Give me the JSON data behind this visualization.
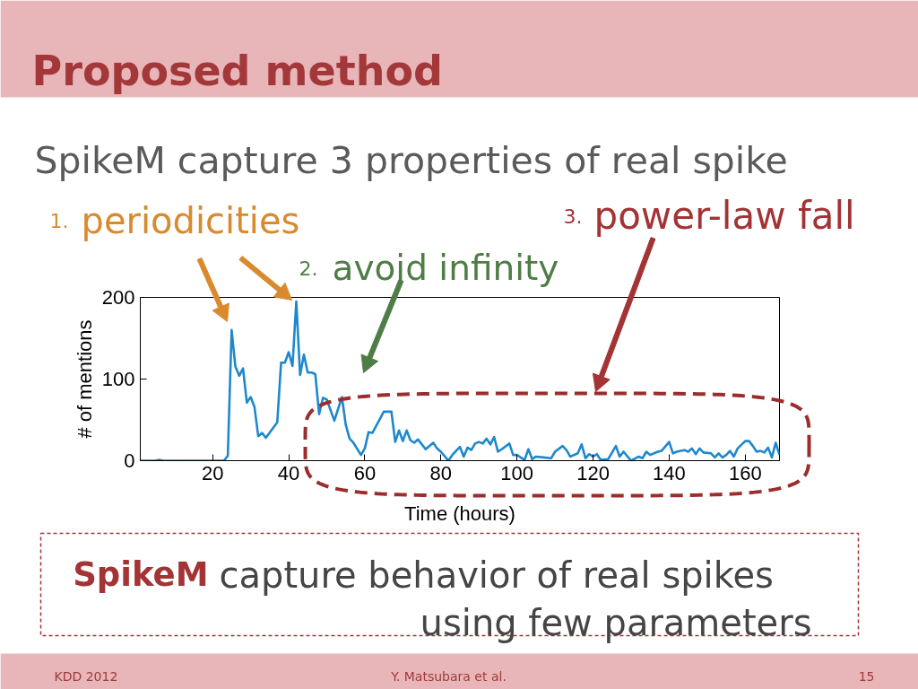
{
  "chart_data": {
    "type": "line",
    "title": "Proposed method",
    "subtitle": "SpikeM capture 3 properties of real spike",
    "xlabel": "Time (hours)",
    "ylabel": "# of mentions",
    "annotations": [
      "1. periodicities",
      "2. avoid infinity",
      "3. power-law fall",
      "SpikeM capture behavior of real spikes",
      "using few parameters",
      "KDD 2012",
      "Y. Matsubara et al.",
      "15"
    ],
    "x": [
      1,
      5,
      6,
      7,
      23,
      24,
      25,
      26,
      27,
      28,
      29,
      30,
      31,
      32,
      33,
      34,
      37,
      38,
      39,
      40,
      41,
      42,
      43,
      44,
      45,
      46,
      47,
      48,
      49,
      50,
      52,
      54,
      55,
      56,
      57,
      59,
      60,
      61,
      62,
      65,
      66,
      67,
      68,
      69,
      70,
      71,
      72,
      73,
      74,
      76,
      78,
      79,
      80,
      82,
      83,
      85,
      86,
      87,
      88,
      89,
      90,
      91,
      92,
      93,
      94,
      95,
      96,
      98,
      99,
      100,
      102,
      103,
      104,
      105,
      107,
      109,
      110,
      112,
      113,
      114,
      116,
      117,
      118,
      119,
      120,
      121,
      122,
      124,
      126,
      127,
      128,
      130,
      132,
      133,
      134,
      135,
      137,
      138,
      140,
      141,
      142,
      144,
      145,
      146,
      147,
      148,
      149,
      151,
      152,
      153,
      154,
      155,
      156,
      157,
      158,
      160,
      161,
      162,
      163,
      164,
      165,
      166,
      167,
      168,
      169
    ],
    "series": [
      {
        "color": "#1e88cc",
        "values": [
          0,
          0,
          1,
          0,
          0,
          6,
          160,
          115,
          104,
          113,
          71,
          78,
          66,
          30,
          34,
          28,
          47,
          120,
          120,
          133,
          116,
          195,
          105,
          130,
          108,
          108,
          106,
          57,
          77,
          75,
          49,
          78,
          44,
          27,
          22,
          7,
          15,
          35,
          34,
          60,
          60,
          60,
          23,
          37,
          24,
          37,
          25,
          22,
          26,
          14,
          22,
          15,
          11,
          0,
          7,
          17,
          5,
          16,
          13,
          21,
          23,
          21,
          27,
          20,
          29,
          11,
          14,
          21,
          7,
          7,
          1,
          14,
          2,
          5,
          4,
          3,
          11,
          18,
          13,
          5,
          9,
          20,
          3,
          8,
          5,
          8,
          1,
          2,
          18,
          5,
          11,
          0,
          5,
          3,
          11,
          7,
          11,
          12,
          23,
          9,
          11,
          13,
          11,
          15,
          8,
          15,
          10,
          9,
          4,
          9,
          4,
          7,
          12,
          5,
          15,
          24,
          24,
          18,
          11,
          12,
          10,
          16,
          4,
          22,
          7
        ]
      }
    ],
    "xlim": [
      1,
      169
    ],
    "ylim": [
      0,
      200
    ],
    "xticks": [
      20,
      40,
      60,
      80,
      100,
      120,
      140,
      160
    ],
    "yticks": [
      0,
      100,
      200
    ]
  }
}
